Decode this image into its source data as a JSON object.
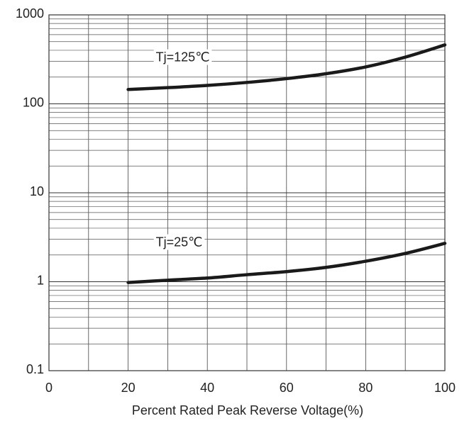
{
  "chart_data": {
    "type": "line",
    "title": "",
    "xlabel": "Percent Rated Peak Reverse Voltage(%)",
    "ylabel": "",
    "x_ticks": [
      "0",
      "20",
      "40",
      "60",
      "80",
      "100"
    ],
    "y_ticks": [
      "0.1",
      "1",
      "10",
      "100",
      "1000"
    ],
    "xlim": [
      0,
      100
    ],
    "ylim": [
      0.1,
      1000
    ],
    "y_scale": "log",
    "grid": true,
    "line_color": "#1a1a1a",
    "series": [
      {
        "name": "Tj=125℃",
        "x": [
          20,
          30,
          40,
          50,
          60,
          70,
          80,
          90,
          100
        ],
        "y": [
          145,
          152,
          161,
          174,
          192,
          218,
          260,
          335,
          460
        ]
      },
      {
        "name": "Tj=25℃",
        "x": [
          20,
          30,
          40,
          50,
          60,
          70,
          80,
          90,
          100
        ],
        "y": [
          0.98,
          1.04,
          1.1,
          1.2,
          1.3,
          1.45,
          1.7,
          2.08,
          2.7
        ]
      }
    ]
  }
}
